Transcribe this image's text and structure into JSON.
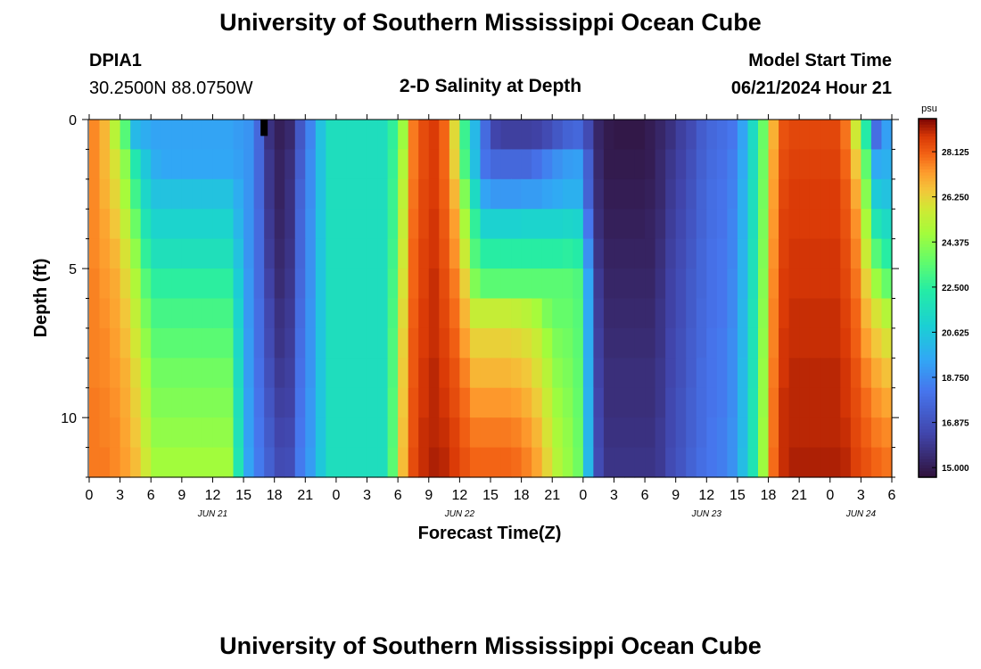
{
  "header": {
    "title": "University of Southern Mississippi Ocean Cube",
    "station_name": "DPIA1",
    "station_coords": "30.2500N  88.0750W",
    "plot_title": "2-D Salinity at Depth",
    "model_start_label": "Model Start Time",
    "model_start_value": "06/21/2024 Hour 21"
  },
  "footer": {
    "title": "University of Southern Mississippi Ocean Cube"
  },
  "chart_data": {
    "type": "heatmap",
    "title": "2-D Salinity at Depth",
    "xlabel": "Forecast Time(Z)",
    "ylabel": "Depth (ft)",
    "x_tick_labels": [
      "0",
      "3",
      "6",
      "9",
      "12",
      "15",
      "18",
      "21",
      "0",
      "3",
      "6",
      "9",
      "12",
      "15",
      "18",
      "21",
      "0",
      "3",
      "6",
      "9",
      "12",
      "15",
      "18",
      "21",
      "0",
      "3",
      "6"
    ],
    "x_range_hours": [
      0,
      78
    ],
    "x_columns_hours_from_jun21_00z": [
      0,
      1,
      2,
      3,
      4,
      5,
      6,
      7,
      8,
      9,
      10,
      11,
      12,
      13,
      14,
      15,
      16,
      17,
      18,
      19,
      20,
      21,
      22,
      23,
      24,
      25,
      26,
      27,
      28,
      29,
      30,
      31,
      32,
      33,
      34,
      35,
      36,
      37,
      38,
      39,
      40,
      41,
      42,
      43,
      44,
      45,
      46,
      47,
      48,
      49,
      50,
      51,
      52,
      53,
      54,
      55,
      56,
      57,
      58,
      59,
      60,
      61,
      62,
      63,
      64,
      65,
      66,
      67,
      68,
      69,
      70,
      71,
      72,
      73,
      74,
      75,
      76,
      77
    ],
    "date_labels": [
      {
        "label": "JUN 21",
        "hour": 12
      },
      {
        "label": "JUN 22",
        "hour": 36
      },
      {
        "label": "JUN 23",
        "hour": 60
      },
      {
        "label": "JUN 24",
        "hour": 75
      }
    ],
    "y_tick_labels": [
      "0",
      "5",
      "10"
    ],
    "y_range_ft": [
      0,
      12
    ],
    "depth_levels_ft": [
      0.5,
      1.5,
      2.5,
      3.5,
      4.5,
      5.5,
      6.5,
      7.5,
      8.5,
      9.5,
      10.5,
      11.5
    ],
    "colorbar": {
      "unit": "psu",
      "min": 14.6,
      "max": 29.5,
      "tick_labels": [
        "15.000",
        "16.875",
        "18.750",
        "20.625",
        "22.500",
        "24.375",
        "26.250",
        "28.125"
      ]
    },
    "series": [
      {
        "depth_ft": 0.5,
        "values": [
          27.5,
          26.8,
          25.2,
          23.3,
          20.1,
          19.7,
          19.4,
          19.4,
          19.4,
          19.4,
          19.4,
          19.4,
          19.4,
          19.4,
          19.2,
          19.0,
          17.7,
          15.7,
          15.1,
          15.4,
          17.1,
          18.6,
          20.4,
          21.6,
          21.6,
          21.6,
          21.6,
          21.6,
          21.6,
          22.6,
          24.6,
          27.7,
          28.4,
          28.7,
          28.0,
          26.1,
          22.8,
          20.1,
          17.8,
          16.4,
          16.2,
          16.2,
          16.2,
          16.3,
          16.6,
          17.1,
          17.5,
          17.7,
          16.6,
          15.3,
          14.9,
          14.8,
          14.8,
          14.8,
          15.0,
          15.3,
          15.7,
          16.2,
          16.6,
          17.3,
          17.7,
          17.9,
          18.2,
          19.4,
          21.4,
          23.7,
          26.9,
          28.3,
          28.5,
          28.5,
          28.5,
          28.5,
          28.5,
          27.8,
          25.7,
          22.3,
          17.9,
          19.3
        ]
      },
      {
        "depth_ft": 1.5,
        "values": [
          27.5,
          26.8,
          25.9,
          24.3,
          22.1,
          20.6,
          19.7,
          19.5,
          19.5,
          19.5,
          19.5,
          19.5,
          19.5,
          19.5,
          19.3,
          19.0,
          17.7,
          15.9,
          15.2,
          15.6,
          17.3,
          18.8,
          20.4,
          21.6,
          21.6,
          21.6,
          21.6,
          21.6,
          21.6,
          22.7,
          25.0,
          27.7,
          28.4,
          28.7,
          28.0,
          26.3,
          23.1,
          20.3,
          18.1,
          17.7,
          17.7,
          17.7,
          17.7,
          18.0,
          18.5,
          18.9,
          19.2,
          19.3,
          17.4,
          15.4,
          14.9,
          14.9,
          14.9,
          14.9,
          15.0,
          15.4,
          15.9,
          16.3,
          16.8,
          17.4,
          17.8,
          18.0,
          18.4,
          19.6,
          21.5,
          23.8,
          27.1,
          28.4,
          28.6,
          28.6,
          28.6,
          28.6,
          28.6,
          28.0,
          26.5,
          23.5,
          19.6,
          19.8
        ]
      },
      {
        "depth_ft": 2.5,
        "values": [
          27.5,
          26.9,
          26.2,
          24.8,
          22.9,
          21.2,
          20.4,
          20.4,
          20.4,
          20.4,
          20.4,
          20.4,
          20.4,
          20.4,
          19.7,
          19.0,
          17.7,
          15.9,
          15.2,
          15.7,
          17.5,
          18.8,
          20.4,
          21.6,
          21.6,
          21.6,
          21.6,
          21.6,
          21.6,
          22.8,
          25.3,
          27.8,
          28.5,
          28.7,
          28.1,
          26.8,
          24.1,
          21.4,
          19.4,
          19.1,
          19.1,
          19.1,
          19.2,
          19.2,
          19.4,
          19.6,
          19.8,
          19.8,
          17.5,
          15.5,
          15.0,
          15.0,
          15.0,
          15.0,
          15.1,
          15.4,
          16.0,
          16.4,
          16.9,
          17.5,
          17.9,
          18.1,
          18.5,
          19.8,
          21.6,
          23.9,
          27.2,
          28.5,
          28.7,
          28.7,
          28.7,
          28.7,
          28.7,
          28.2,
          27.0,
          24.2,
          20.7,
          20.4
        ]
      },
      {
        "depth_ft": 3.5,
        "values": [
          27.5,
          27.1,
          26.5,
          25.4,
          23.7,
          21.9,
          21.1,
          21.1,
          21.1,
          21.1,
          21.1,
          21.1,
          21.1,
          21.1,
          20.0,
          19.0,
          17.8,
          16.0,
          15.3,
          15.7,
          17.6,
          18.9,
          20.5,
          21.6,
          21.6,
          21.6,
          21.6,
          21.6,
          21.6,
          22.8,
          25.5,
          27.9,
          28.5,
          28.8,
          28.2,
          27.2,
          24.9,
          22.6,
          21.0,
          21.0,
          21.0,
          21.0,
          21.1,
          21.1,
          21.1,
          21.1,
          21.2,
          21.1,
          18.2,
          15.6,
          15.1,
          15.1,
          15.1,
          15.1,
          15.2,
          15.5,
          16.1,
          16.5,
          17.0,
          17.5,
          17.9,
          18.1,
          18.6,
          19.8,
          21.6,
          24.0,
          27.3,
          28.6,
          28.7,
          28.7,
          28.7,
          28.7,
          28.7,
          28.3,
          27.4,
          24.9,
          22.0,
          21.4
        ]
      },
      {
        "depth_ft": 4.5,
        "values": [
          27.5,
          27.2,
          26.8,
          25.9,
          24.4,
          22.6,
          21.7,
          21.7,
          21.7,
          21.7,
          21.7,
          21.7,
          21.7,
          21.7,
          20.4,
          19.0,
          17.8,
          16.1,
          15.4,
          15.8,
          17.6,
          18.9,
          20.5,
          21.6,
          21.6,
          21.6,
          21.6,
          21.6,
          21.6,
          22.9,
          25.7,
          28.0,
          28.6,
          28.8,
          28.3,
          27.4,
          25.6,
          23.2,
          22.4,
          22.4,
          22.4,
          22.4,
          22.4,
          22.4,
          22.4,
          22.4,
          22.5,
          22.3,
          18.9,
          15.8,
          15.2,
          15.2,
          15.2,
          15.2,
          15.2,
          15.6,
          16.2,
          16.6,
          17.1,
          17.6,
          18.0,
          18.2,
          18.6,
          19.9,
          21.7,
          24.1,
          27.4,
          28.6,
          28.8,
          28.8,
          28.8,
          28.8,
          28.8,
          28.4,
          27.6,
          25.6,
          23.3,
          22.4
        ]
      },
      {
        "depth_ft": 5.5,
        "values": [
          27.6,
          27.3,
          27.0,
          26.2,
          25.0,
          23.3,
          22.5,
          22.5,
          22.5,
          22.5,
          22.5,
          22.5,
          22.5,
          22.5,
          20.8,
          19.1,
          17.8,
          16.3,
          15.5,
          15.9,
          17.7,
          18.9,
          20.5,
          21.6,
          21.6,
          21.6,
          21.6,
          21.6,
          21.6,
          23.0,
          25.9,
          28.0,
          28.6,
          28.9,
          28.4,
          27.7,
          26.3,
          24.1,
          23.4,
          23.4,
          23.4,
          23.4,
          23.4,
          23.4,
          23.4,
          23.4,
          23.4,
          23.2,
          19.5,
          16.0,
          15.3,
          15.3,
          15.3,
          15.3,
          15.3,
          15.7,
          16.3,
          16.7,
          17.2,
          17.6,
          18.0,
          18.2,
          18.7,
          19.9,
          21.7,
          24.2,
          27.5,
          28.7,
          28.8,
          28.8,
          28.8,
          28.8,
          28.8,
          28.5,
          27.8,
          26.3,
          24.6,
          23.6
        ]
      },
      {
        "depth_ft": 6.5,
        "values": [
          27.6,
          27.4,
          27.1,
          26.5,
          25.4,
          23.9,
          23.0,
          23.0,
          23.0,
          23.0,
          23.0,
          23.0,
          23.0,
          23.0,
          21.1,
          19.1,
          17.9,
          16.5,
          15.7,
          16.0,
          17.8,
          19.0,
          20.5,
          21.6,
          21.6,
          21.6,
          21.6,
          21.6,
          21.6,
          23.1,
          26.1,
          28.1,
          28.7,
          28.9,
          28.5,
          27.9,
          26.8,
          25.5,
          25.5,
          25.5,
          25.5,
          25.4,
          25.2,
          24.8,
          24.0,
          23.6,
          23.6,
          23.3,
          19.6,
          16.1,
          15.4,
          15.4,
          15.4,
          15.4,
          15.4,
          15.8,
          16.3,
          16.7,
          17.2,
          17.7,
          18.0,
          18.2,
          18.7,
          20.0,
          21.8,
          24.3,
          27.6,
          28.7,
          28.9,
          28.9,
          28.9,
          28.9,
          28.9,
          28.6,
          28.0,
          26.8,
          25.9,
          25.1
        ]
      },
      {
        "depth_ft": 7.5,
        "values": [
          27.6,
          27.5,
          27.2,
          26.7,
          25.8,
          24.4,
          23.4,
          23.4,
          23.4,
          23.4,
          23.4,
          23.4,
          23.4,
          23.4,
          21.3,
          19.2,
          17.9,
          16.6,
          15.8,
          16.1,
          17.9,
          19.0,
          20.5,
          21.6,
          21.6,
          21.6,
          21.6,
          21.6,
          21.6,
          23.2,
          26.3,
          28.2,
          28.7,
          28.9,
          28.6,
          28.1,
          27.2,
          26.3,
          26.3,
          26.3,
          26.3,
          26.2,
          26.0,
          25.6,
          24.7,
          24.0,
          23.8,
          23.4,
          19.7,
          16.2,
          15.5,
          15.5,
          15.5,
          15.5,
          15.5,
          15.8,
          16.4,
          16.8,
          17.3,
          17.7,
          18.1,
          18.3,
          18.8,
          20.0,
          21.8,
          24.4,
          27.6,
          28.8,
          28.9,
          28.9,
          28.9,
          28.9,
          28.9,
          28.7,
          28.1,
          27.2,
          26.5,
          26.0
        ]
      },
      {
        "depth_ft": 8.5,
        "values": [
          27.6,
          27.5,
          27.3,
          26.9,
          26.1,
          24.8,
          23.8,
          23.8,
          23.8,
          23.8,
          23.8,
          23.8,
          23.8,
          23.8,
          21.5,
          19.2,
          18.0,
          16.8,
          16.0,
          16.2,
          18.0,
          19.0,
          20.5,
          21.6,
          21.6,
          21.6,
          21.6,
          21.6,
          21.6,
          23.2,
          26.4,
          28.2,
          28.8,
          29.0,
          28.7,
          28.3,
          27.6,
          26.8,
          26.8,
          26.8,
          26.8,
          26.7,
          26.5,
          26.0,
          25.2,
          24.3,
          24.0,
          23.5,
          19.8,
          16.3,
          15.6,
          15.6,
          15.6,
          15.6,
          15.6,
          15.9,
          16.4,
          16.8,
          17.3,
          17.8,
          18.1,
          18.3,
          18.8,
          20.1,
          21.8,
          24.5,
          27.7,
          28.8,
          29.0,
          29.0,
          29.0,
          29.0,
          29.0,
          28.8,
          28.3,
          27.6,
          27.0,
          26.6
        ]
      },
      {
        "depth_ft": 9.5,
        "values": [
          27.7,
          27.6,
          27.4,
          27.0,
          26.3,
          25.1,
          24.1,
          24.1,
          24.1,
          24.1,
          24.1,
          24.1,
          24.1,
          24.1,
          21.7,
          19.3,
          18.1,
          17.0,
          16.2,
          16.3,
          18.1,
          19.1,
          20.5,
          21.6,
          21.6,
          21.6,
          21.6,
          21.6,
          21.6,
          23.3,
          26.5,
          28.3,
          28.8,
          29.0,
          28.8,
          28.4,
          27.9,
          27.3,
          27.3,
          27.3,
          27.3,
          27.2,
          26.9,
          26.4,
          25.6,
          24.6,
          24.2,
          23.6,
          19.9,
          16.4,
          15.6,
          15.6,
          15.6,
          15.6,
          15.6,
          15.9,
          16.5,
          16.9,
          17.4,
          17.8,
          18.1,
          18.3,
          18.8,
          20.1,
          21.9,
          24.5,
          27.8,
          28.9,
          29.0,
          29.0,
          29.0,
          29.0,
          29.0,
          28.8,
          28.4,
          27.9,
          27.4,
          27.1
        ]
      },
      {
        "depth_ft": 10.5,
        "values": [
          27.7,
          27.6,
          27.5,
          27.1,
          26.5,
          25.4,
          24.4,
          24.4,
          24.4,
          24.4,
          24.4,
          24.4,
          24.4,
          24.4,
          21.8,
          19.3,
          18.2,
          17.2,
          16.4,
          16.5,
          18.2,
          19.1,
          20.5,
          21.6,
          21.6,
          21.6,
          21.6,
          21.6,
          21.6,
          23.3,
          26.6,
          28.3,
          28.9,
          29.0,
          28.9,
          28.6,
          28.1,
          27.7,
          27.7,
          27.7,
          27.7,
          27.6,
          27.3,
          26.8,
          25.9,
          24.9,
          24.4,
          23.7,
          20.0,
          16.5,
          15.7,
          15.7,
          15.7,
          15.7,
          15.7,
          16.0,
          16.5,
          16.9,
          17.4,
          17.8,
          18.2,
          18.4,
          18.9,
          20.1,
          21.9,
          24.6,
          27.8,
          28.9,
          29.0,
          29.0,
          29.0,
          29.0,
          29.0,
          28.9,
          28.5,
          28.1,
          27.7,
          27.5
        ]
      },
      {
        "depth_ft": 11.5,
        "values": [
          27.7,
          27.7,
          27.5,
          27.2,
          26.7,
          25.7,
          24.7,
          24.7,
          24.7,
          24.7,
          24.7,
          24.7,
          24.7,
          24.7,
          22.0,
          19.4,
          18.3,
          17.4,
          16.6,
          16.7,
          18.3,
          19.2,
          20.6,
          21.6,
          21.6,
          21.6,
          21.6,
          21.6,
          21.6,
          23.4,
          26.7,
          28.4,
          28.9,
          29.1,
          29.0,
          28.7,
          28.3,
          28.0,
          28.0,
          28.0,
          28.0,
          27.9,
          27.6,
          27.1,
          26.2,
          25.1,
          24.5,
          23.8,
          20.1,
          16.6,
          15.8,
          15.8,
          15.8,
          15.8,
          15.8,
          16.0,
          16.6,
          17.0,
          17.5,
          17.9,
          18.2,
          18.4,
          18.9,
          20.2,
          21.9,
          24.6,
          27.9,
          28.9,
          29.1,
          29.1,
          29.1,
          29.1,
          29.1,
          29.0,
          28.6,
          28.3,
          28.0,
          27.8
        ]
      }
    ],
    "missing_cells": [
      {
        "depth_ft": 0.5,
        "hour": 17
      }
    ]
  }
}
